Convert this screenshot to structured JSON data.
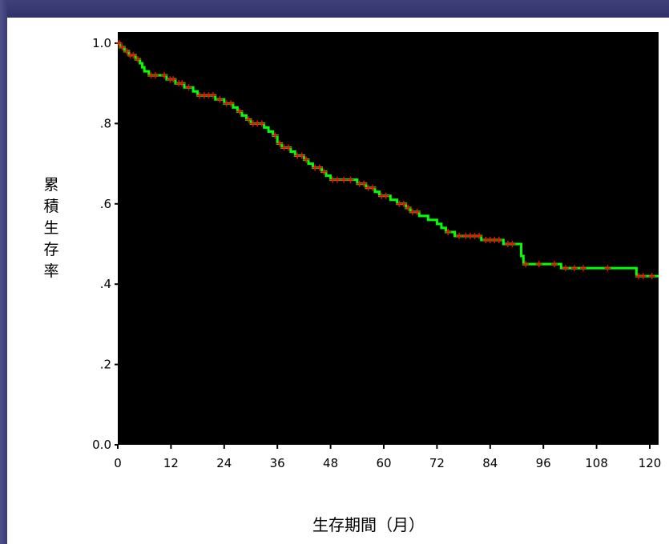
{
  "chart_data": {
    "type": "line",
    "subtype": "kaplan-meier-survival",
    "title": "",
    "xlabel": "生存期間（月）",
    "ylabel": "累積生存率",
    "xlim": [
      0,
      120
    ],
    "ylim": [
      0,
      1.0
    ],
    "x_ticks": [
      "0",
      "12",
      "24",
      "36",
      "48",
      "60",
      "72",
      "84",
      "96",
      "108",
      "120"
    ],
    "x_tick_values": [
      0,
      12,
      24,
      36,
      48,
      60,
      72,
      84,
      96,
      108,
      120
    ],
    "y_ticks": [
      "0.0",
      ".2",
      ".4",
      ".6",
      ".8",
      "1.0"
    ],
    "y_tick_values": [
      0,
      0.2,
      0.4,
      0.6,
      0.8,
      1.0
    ],
    "plot_background": "#000000",
    "series": [
      {
        "color": "#00ff00",
        "censor_color": "#ff0000",
        "steps": [
          [
            0,
            1.0
          ],
          [
            0.5,
            0.99
          ],
          [
            1.5,
            0.98
          ],
          [
            2.5,
            0.97
          ],
          [
            4.0,
            0.96
          ],
          [
            5.0,
            0.95
          ],
          [
            5.5,
            0.94
          ],
          [
            6.0,
            0.93
          ],
          [
            7.0,
            0.92
          ],
          [
            10.0,
            0.92
          ],
          [
            11.0,
            0.91
          ],
          [
            13.0,
            0.9
          ],
          [
            15.0,
            0.89
          ],
          [
            17.0,
            0.88
          ],
          [
            18.0,
            0.87
          ],
          [
            22.0,
            0.86
          ],
          [
            24.0,
            0.85
          ],
          [
            26.0,
            0.84
          ],
          [
            27.0,
            0.83
          ],
          [
            28.0,
            0.82
          ],
          [
            29.0,
            0.81
          ],
          [
            30.0,
            0.8
          ],
          [
            33.0,
            0.79
          ],
          [
            34.0,
            0.78
          ],
          [
            35.0,
            0.77
          ],
          [
            36.0,
            0.75
          ],
          [
            37.0,
            0.74
          ],
          [
            39.0,
            0.73
          ],
          [
            40.0,
            0.72
          ],
          [
            42.0,
            0.71
          ],
          [
            43.0,
            0.7
          ],
          [
            44.0,
            0.69
          ],
          [
            46.0,
            0.68
          ],
          [
            47.0,
            0.67
          ],
          [
            48.0,
            0.66
          ],
          [
            54.0,
            0.65
          ],
          [
            56.0,
            0.64
          ],
          [
            58.0,
            0.63
          ],
          [
            59.0,
            0.62
          ],
          [
            61.5,
            0.61
          ],
          [
            63.0,
            0.6
          ],
          [
            65.0,
            0.59
          ],
          [
            66.0,
            0.58
          ],
          [
            68.0,
            0.57
          ],
          [
            70.0,
            0.56
          ],
          [
            72.0,
            0.55
          ],
          [
            73.0,
            0.54
          ],
          [
            74.0,
            0.53
          ],
          [
            76.0,
            0.52
          ],
          [
            82.0,
            0.51
          ],
          [
            87.0,
            0.5
          ],
          [
            91.0,
            0.47
          ],
          [
            91.5,
            0.45
          ],
          [
            100.0,
            0.44
          ],
          [
            117.0,
            0.42
          ],
          [
            122.0,
            0.42
          ]
        ],
        "censored": [
          [
            0.3,
            1.0
          ],
          [
            1.0,
            0.99
          ],
          [
            2.0,
            0.98
          ],
          [
            2.8,
            0.97
          ],
          [
            3.5,
            0.97
          ],
          [
            4.5,
            0.96
          ],
          [
            7.5,
            0.92
          ],
          [
            8.5,
            0.92
          ],
          [
            10.5,
            0.92
          ],
          [
            11.8,
            0.91
          ],
          [
            12.5,
            0.91
          ],
          [
            13.8,
            0.9
          ],
          [
            14.5,
            0.9
          ],
          [
            16.0,
            0.89
          ],
          [
            18.5,
            0.87
          ],
          [
            19.5,
            0.87
          ],
          [
            20.5,
            0.87
          ],
          [
            21.5,
            0.87
          ],
          [
            23.0,
            0.86
          ],
          [
            24.5,
            0.85
          ],
          [
            25.5,
            0.85
          ],
          [
            27.5,
            0.83
          ],
          [
            29.5,
            0.81
          ],
          [
            30.5,
            0.8
          ],
          [
            31.5,
            0.8
          ],
          [
            32.5,
            0.8
          ],
          [
            35.5,
            0.77
          ],
          [
            36.5,
            0.75
          ],
          [
            37.5,
            0.74
          ],
          [
            38.5,
            0.74
          ],
          [
            40.5,
            0.72
          ],
          [
            41.5,
            0.72
          ],
          [
            42.5,
            0.71
          ],
          [
            44.5,
            0.69
          ],
          [
            45.5,
            0.69
          ],
          [
            46.5,
            0.68
          ],
          [
            48.5,
            0.66
          ],
          [
            49.5,
            0.66
          ],
          [
            51.0,
            0.66
          ],
          [
            52.5,
            0.66
          ],
          [
            54.5,
            0.65
          ],
          [
            55.5,
            0.65
          ],
          [
            56.5,
            0.64
          ],
          [
            57.5,
            0.64
          ],
          [
            59.5,
            0.62
          ],
          [
            60.5,
            0.62
          ],
          [
            63.5,
            0.6
          ],
          [
            64.5,
            0.6
          ],
          [
            65.5,
            0.59
          ],
          [
            66.5,
            0.58
          ],
          [
            67.5,
            0.58
          ],
          [
            74.5,
            0.53
          ],
          [
            77.0,
            0.52
          ],
          [
            78.5,
            0.52
          ],
          [
            79.5,
            0.52
          ],
          [
            80.5,
            0.52
          ],
          [
            81.5,
            0.52
          ],
          [
            83.0,
            0.51
          ],
          [
            84.0,
            0.51
          ],
          [
            85.0,
            0.51
          ],
          [
            86.0,
            0.51
          ],
          [
            88.0,
            0.5
          ],
          [
            89.0,
            0.5
          ],
          [
            92.0,
            0.45
          ],
          [
            95.0,
            0.45
          ],
          [
            98.5,
            0.45
          ],
          [
            101.0,
            0.44
          ],
          [
            103.0,
            0.44
          ],
          [
            105.0,
            0.44
          ],
          [
            110.5,
            0.44
          ],
          [
            117.5,
            0.42
          ],
          [
            118.5,
            0.42
          ],
          [
            120.5,
            0.42
          ]
        ]
      }
    ]
  }
}
